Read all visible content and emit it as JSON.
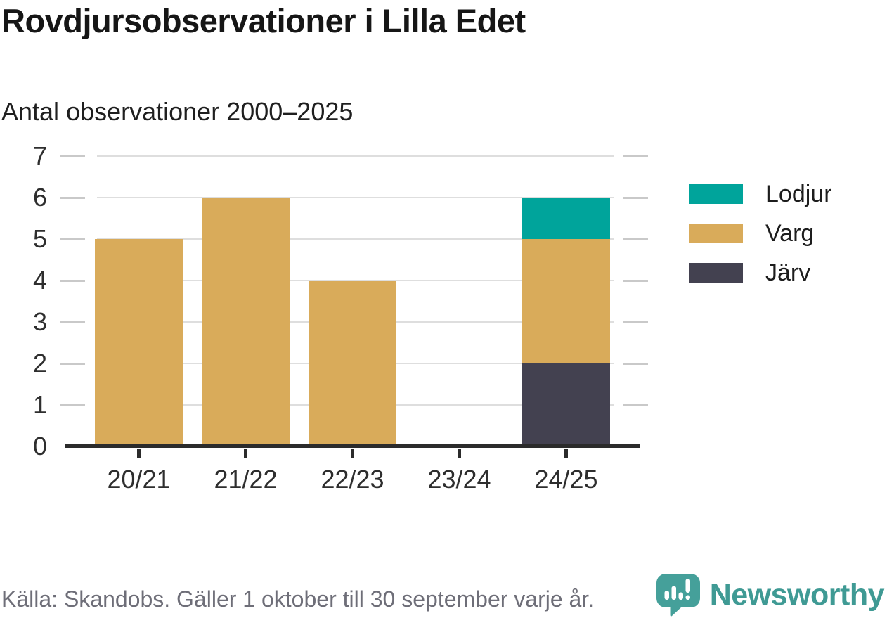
{
  "header": {
    "title": "Rovdjursobservationer i Lilla Edet",
    "subtitle": "Antal observationer 2000–2025"
  },
  "chart_data": {
    "type": "bar",
    "stacked": true,
    "title": "Rovdjursobservationer i Lilla Edet",
    "subtitle": "Antal observationer 2000–2025",
    "categories": [
      "20/21",
      "21/22",
      "22/23",
      "23/24",
      "24/25"
    ],
    "series": [
      {
        "name": "Lodjur",
        "color": "#00a49b",
        "values": [
          0,
          0,
          0,
          0,
          1
        ]
      },
      {
        "name": "Varg",
        "color": "#d9ab5a",
        "values": [
          5,
          6,
          4,
          0,
          3
        ]
      },
      {
        "name": "Järv",
        "color": "#434150",
        "values": [
          0,
          0,
          0,
          0,
          2
        ]
      }
    ],
    "xlabel": "",
    "ylabel": "",
    "ylim": [
      0,
      7
    ],
    "yticks": [
      0,
      1,
      2,
      3,
      4,
      5,
      6,
      7
    ],
    "grid": true,
    "legend_position": "right"
  },
  "footer": {
    "source": "Källa: Skandobs. Gäller 1 oktober till 30 september varje år.",
    "brand": "Newsworthy"
  },
  "colors": {
    "lodjur": "#00a49b",
    "varg": "#d9ab5a",
    "jarv": "#434150",
    "grid": "#dedede",
    "axis": "#2b2b2b",
    "source_text": "#6e6e78",
    "brand_teal": "#3f9a94"
  }
}
